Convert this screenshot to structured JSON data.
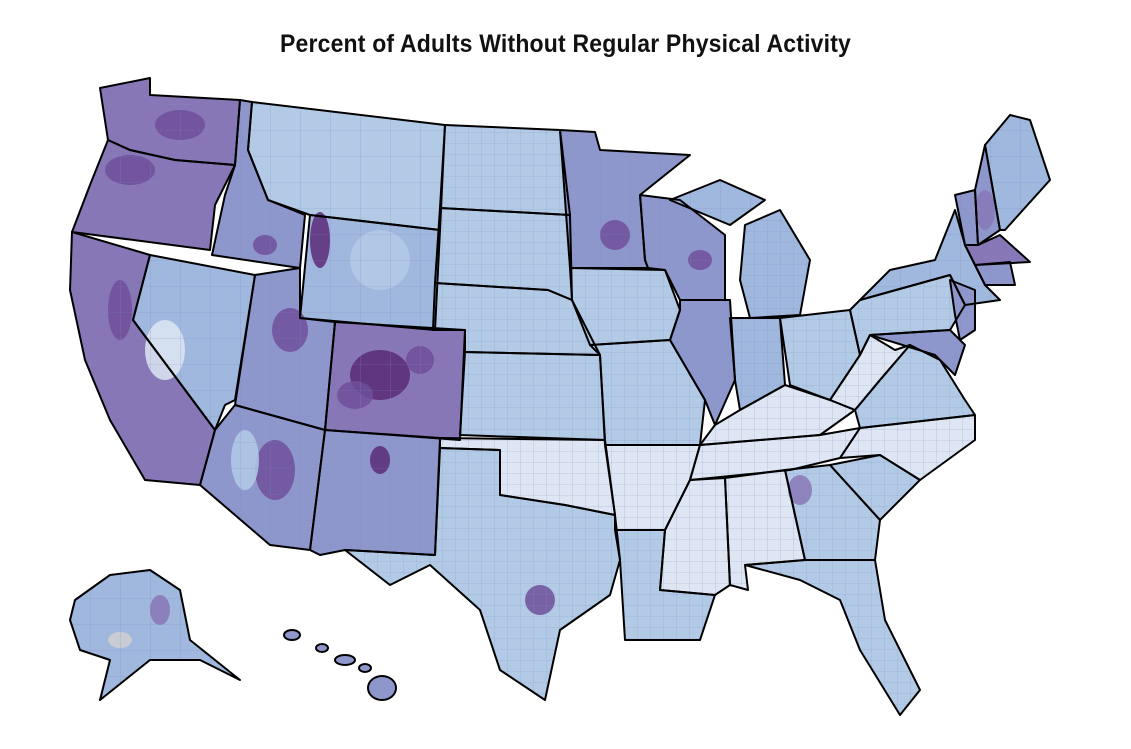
{
  "title": "Percent of Adults Without Regular Physical Activity",
  "colors": {
    "lightest": "#dde6f2",
    "light": "#b3cae6",
    "blue": "#a0b7de",
    "mid": "#8e97cc",
    "purple": "#8877b6",
    "dark": "#6f4f9a",
    "darkest": "#5a2a78",
    "no_data": "#d0d0d0"
  }
}
